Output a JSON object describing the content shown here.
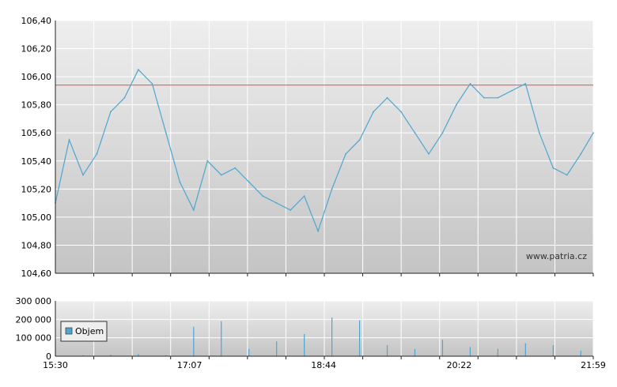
{
  "chart_data": [
    {
      "type": "line",
      "title": "",
      "xlabel": "",
      "ylabel": "",
      "ylim": [
        104.6,
        106.4
      ],
      "y_ticks": [
        "106,40",
        "106,20",
        "106,00",
        "105,80",
        "105,60",
        "105,40",
        "105,20",
        "105,00",
        "104,80",
        "104,60"
      ],
      "x_tick_labels": [
        "15:30",
        "17:07",
        "18:44",
        "20:22",
        "21:59"
      ],
      "reference_line": 105.94,
      "grid": true,
      "watermark": "www.patria.cz",
      "colors": {
        "line": "#4ea6cf",
        "reference": "#e05050",
        "grid": "#ffffff",
        "plot_bg_top": "#eeeeee",
        "plot_bg_bottom": "#c4c4c4"
      },
      "series": [
        {
          "x": [
            "15:30",
            "15:40",
            "15:50",
            "16:00",
            "16:10",
            "16:20",
            "16:30",
            "16:40",
            "16:50",
            "17:00",
            "17:10",
            "17:20",
            "17:30",
            "17:40",
            "17:50",
            "18:00",
            "18:10",
            "18:20",
            "18:30",
            "18:40",
            "18:50",
            "19:00",
            "19:10",
            "19:20",
            "19:30",
            "19:40",
            "19:50",
            "20:00",
            "20:10",
            "20:20",
            "20:30",
            "20:40",
            "20:50",
            "21:00",
            "21:10",
            "21:20",
            "21:30",
            "21:40",
            "21:50",
            "21:59"
          ],
          "values": [
            105.1,
            105.55,
            105.3,
            105.45,
            105.75,
            105.85,
            106.05,
            105.95,
            105.6,
            105.25,
            105.05,
            105.4,
            105.3,
            105.35,
            105.25,
            105.15,
            105.1,
            105.05,
            105.15,
            104.9,
            105.2,
            105.45,
            105.55,
            105.75,
            105.85,
            105.75,
            105.6,
            105.45,
            105.6,
            105.8,
            105.95,
            105.85,
            105.85,
            105.9,
            105.95,
            105.6,
            105.35,
            105.3,
            105.45,
            105.6
          ]
        }
      ]
    },
    {
      "type": "bar",
      "title": "",
      "ylim": [
        0,
        300000
      ],
      "y_ticks": [
        "300 000",
        "200 000",
        "100 000",
        "0"
      ],
      "x_tick_labels": [
        "15:30",
        "17:07",
        "18:44",
        "20:22",
        "21:59"
      ],
      "grid": true,
      "legend": {
        "position": "left",
        "entries": [
          "Objem"
        ]
      },
      "colors": {
        "bars": "#4ea6cf",
        "plot_bg_top": "#eeeeee",
        "plot_bg_bottom": "#c4c4c4"
      },
      "series": [
        {
          "name": "Objem",
          "x": [
            "15:30",
            "15:50",
            "16:10",
            "16:30",
            "16:50",
            "17:10",
            "17:30",
            "17:50",
            "18:10",
            "18:30",
            "18:50",
            "19:10",
            "19:30",
            "19:50",
            "20:10",
            "20:30",
            "20:50",
            "21:10",
            "21:30",
            "21:50"
          ],
          "values": [
            45000,
            5000,
            8000,
            12000,
            6000,
            160000,
            190000,
            40000,
            80000,
            120000,
            210000,
            195000,
            60000,
            40000,
            90000,
            50000,
            40000,
            70000,
            60000,
            30000
          ]
        }
      ]
    }
  ]
}
